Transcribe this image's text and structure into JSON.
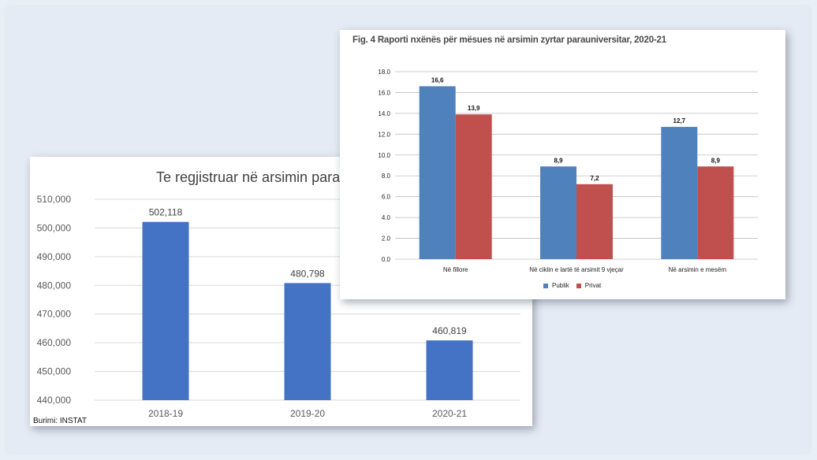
{
  "chart_data": [
    {
      "type": "bar",
      "title": "Te regjistruar në arsimin para",
      "categories": [
        "2018-19",
        "2019-20",
        "2020-21"
      ],
      "values": [
        502118,
        480798,
        460819
      ],
      "value_labels": [
        "502,118",
        "480,798",
        "460,819"
      ],
      "ylim": [
        440000,
        510000
      ],
      "yticks": [
        "440,000",
        "450,000",
        "460,000",
        "470,000",
        "480,000",
        "490,000",
        "500,000",
        "510,000"
      ],
      "grid": true,
      "color": "#4472c4",
      "source": "Burimi: INSTAT"
    },
    {
      "type": "bar",
      "title": "Fig. 4 Raporti nxënës për mësues në arsimin zyrtar parauniversitar, 2020-21",
      "categories": [
        "Në fillore",
        "Në ciklin e lartë të arsimit 9 vjeçar",
        "Në arsimin e mesëm"
      ],
      "series": [
        {
          "name": "Publik",
          "values": [
            16.6,
            8.9,
            12.7
          ],
          "labels": [
            "16,6",
            "8,9",
            "12,7"
          ],
          "color": "#4f81bd"
        },
        {
          "name": "Privat",
          "values": [
            13.9,
            7.2,
            8.9
          ],
          "labels": [
            "13,9",
            "7,2",
            "8,9"
          ],
          "color": "#c0504d"
        }
      ],
      "ylim": [
        0,
        18
      ],
      "yticks": [
        "0.0",
        "2.0",
        "4.0",
        "6.0",
        "8.0",
        "10.0",
        "12.0",
        "14.0",
        "16.0",
        "18.0"
      ],
      "grid": true,
      "legend": "bottom"
    }
  ]
}
